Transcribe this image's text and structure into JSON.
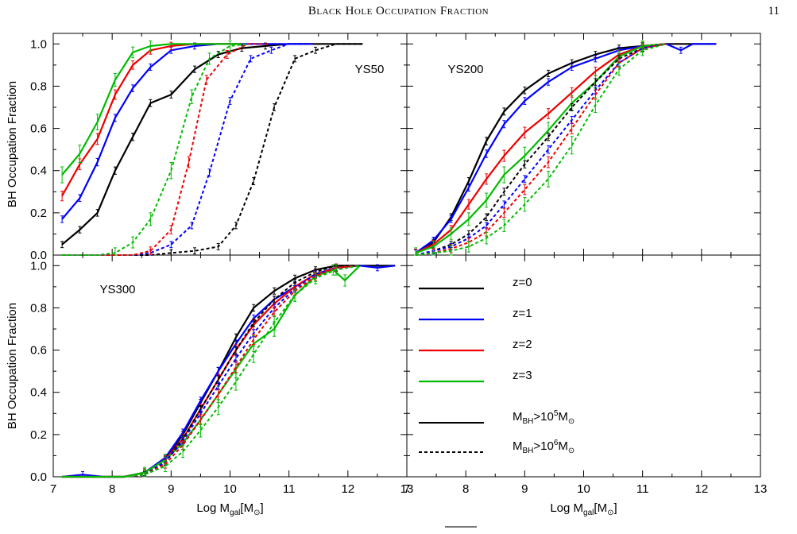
{
  "header": {
    "running_title": "Black Hole Occupation Fraction",
    "page_number": "11"
  },
  "colors": {
    "z0": "#000000",
    "z1": "#0000ff",
    "z2": "#ee0000",
    "z3": "#00bb00"
  },
  "chart_data": {
    "type": "line",
    "ylabel": "BH Occupation Fraction",
    "xlabel": "Log M_gal[M_⊙]",
    "xlim": [
      7,
      13
    ],
    "ylim": [
      0,
      1.05
    ],
    "x_ticks": [
      "7",
      "8",
      "9",
      "10",
      "11",
      "12",
      "13"
    ],
    "y_ticks": [
      "0.0",
      "0.2",
      "0.4",
      "0.6",
      "0.8",
      "1.0"
    ],
    "legend": {
      "redshifts": [
        {
          "label": "z=0",
          "color": "#000000"
        },
        {
          "label": "z=1",
          "color": "#0000ff"
        },
        {
          "label": "z=2",
          "color": "#ee0000"
        },
        {
          "label": "z=3",
          "color": "#00bb00"
        }
      ],
      "styles": [
        {
          "label_main": "M",
          "label_sub": "BH",
          "label_rest": ">10",
          "label_sup": "5",
          "label_unit": "M",
          "label_unit_sub": "⊙",
          "dash": false
        },
        {
          "label_main": "M",
          "label_sub": "BH",
          "label_rest": ">10",
          "label_sup": "6",
          "label_unit": "M",
          "label_unit_sub": "⊙",
          "dash": true
        }
      ]
    },
    "panels": [
      {
        "label": "YS50",
        "series": [
          {
            "z": 0,
            "cut": "1e5",
            "x": [
              7.15,
              7.45,
              7.75,
              8.05,
              8.35,
              8.65,
              9.0,
              9.4,
              9.8,
              10.2,
              10.6,
              11.0,
              11.4,
              11.8,
              12.25
            ],
            "y": [
              0.05,
              0.12,
              0.2,
              0.4,
              0.56,
              0.72,
              0.76,
              0.88,
              0.95,
              0.98,
              0.99,
              1.0,
              1.0,
              1.0,
              1.0
            ]
          },
          {
            "z": 1,
            "cut": "1e5",
            "x": [
              7.15,
              7.45,
              7.75,
              8.05,
              8.35,
              8.65,
              9.0,
              9.4,
              9.8,
              10.2,
              10.6,
              11.0,
              11.4
            ],
            "y": [
              0.17,
              0.27,
              0.44,
              0.65,
              0.79,
              0.89,
              0.97,
              0.99,
              1.0,
              1.0,
              1.0,
              1.0,
              1.0
            ]
          },
          {
            "z": 2,
            "cut": "1e5",
            "x": [
              7.15,
              7.45,
              7.75,
              8.05,
              8.35,
              8.65,
              9.0,
              9.4,
              9.8,
              10.2
            ],
            "y": [
              0.28,
              0.43,
              0.55,
              0.76,
              0.9,
              0.97,
              0.99,
              1.0,
              1.0,
              1.0
            ]
          },
          {
            "z": 3,
            "cut": "1e5",
            "x": [
              7.15,
              7.45,
              7.75,
              8.05,
              8.35,
              8.65,
              9.0,
              9.4,
              9.8,
              10.2
            ],
            "y": [
              0.38,
              0.48,
              0.63,
              0.83,
              0.96,
              0.99,
              1.0,
              1.0,
              1.0,
              1.0
            ]
          },
          {
            "z": 0,
            "cut": "1e6",
            "x": [
              7.15,
              7.45,
              7.75,
              8.05,
              8.35,
              8.65,
              9.0,
              9.4,
              9.8,
              10.1,
              10.4,
              10.75,
              11.1,
              11.45,
              11.8,
              12.25
            ],
            "y": [
              0.0,
              0.0,
              0.0,
              0.0,
              0.0,
              0.0,
              0.01,
              0.02,
              0.04,
              0.14,
              0.35,
              0.7,
              0.93,
              0.97,
              1.0,
              1.0
            ]
          },
          {
            "z": 1,
            "cut": "1e6",
            "x": [
              7.15,
              7.45,
              7.75,
              8.05,
              8.35,
              8.65,
              9.0,
              9.35,
              9.65,
              10.0,
              10.35,
              10.7,
              11.0,
              11.3
            ],
            "y": [
              0.0,
              0.0,
              0.0,
              0.0,
              0.0,
              0.01,
              0.05,
              0.14,
              0.39,
              0.73,
              0.93,
              0.97,
              1.0,
              1.0
            ]
          },
          {
            "z": 2,
            "cut": "1e6",
            "x": [
              7.15,
              7.45,
              7.75,
              8.05,
              8.35,
              8.65,
              9.0,
              9.3,
              9.6,
              9.95,
              10.3,
              10.65
            ],
            "y": [
              0.0,
              0.0,
              0.0,
              0.0,
              0.0,
              0.02,
              0.12,
              0.44,
              0.83,
              0.95,
              1.0,
              1.0
            ]
          },
          {
            "z": 3,
            "cut": "1e6",
            "x": [
              7.15,
              7.45,
              7.75,
              8.05,
              8.35,
              8.65,
              9.0,
              9.35,
              9.65,
              10.0,
              10.3
            ],
            "y": [
              0.0,
              0.0,
              0.0,
              0.01,
              0.06,
              0.17,
              0.4,
              0.75,
              0.93,
              0.99,
              1.0
            ]
          }
        ]
      },
      {
        "label": "YS200",
        "series": [
          {
            "z": 0,
            "cut": "1e5",
            "x": [
              7.15,
              7.45,
              7.75,
              8.05,
              8.35,
              8.65,
              9.0,
              9.4,
              9.8,
              10.2,
              10.6,
              11.0,
              11.4,
              11.8,
              12.25
            ],
            "y": [
              0.01,
              0.06,
              0.18,
              0.35,
              0.54,
              0.68,
              0.78,
              0.86,
              0.91,
              0.95,
              0.98,
              0.99,
              1.0,
              1.0,
              1.0
            ]
          },
          {
            "z": 1,
            "cut": "1e5",
            "x": [
              7.15,
              7.45,
              7.75,
              8.05,
              8.35,
              8.65,
              9.0,
              9.4,
              9.8,
              10.2,
              10.6,
              11.0,
              11.4,
              11.65,
              11.85,
              12.25
            ],
            "y": [
              0.01,
              0.07,
              0.17,
              0.32,
              0.48,
              0.62,
              0.73,
              0.82,
              0.89,
              0.93,
              0.97,
              0.99,
              1.0,
              0.97,
              1.0,
              1.0
            ]
          },
          {
            "z": 2,
            "cut": "1e5",
            "x": [
              7.15,
              7.45,
              7.75,
              8.05,
              8.35,
              8.65,
              9.0,
              9.4,
              9.8,
              10.2,
              10.6,
              11.0,
              11.4
            ],
            "y": [
              0.01,
              0.05,
              0.12,
              0.24,
              0.36,
              0.47,
              0.58,
              0.67,
              0.77,
              0.87,
              0.95,
              0.99,
              1.0
            ]
          },
          {
            "z": 3,
            "cut": "1e5",
            "x": [
              7.15,
              7.45,
              7.75,
              8.05,
              8.35,
              8.65,
              9.0,
              9.4,
              9.8,
              10.2,
              10.6,
              11.0,
              11.4
            ],
            "y": [
              0.01,
              0.04,
              0.1,
              0.17,
              0.26,
              0.38,
              0.47,
              0.59,
              0.72,
              0.82,
              0.94,
              0.99,
              1.0
            ]
          },
          {
            "z": 0,
            "cut": "1e6",
            "x": [
              7.15,
              7.45,
              7.75,
              8.05,
              8.35,
              8.65,
              9.0,
              9.4,
              9.8,
              10.2,
              10.6,
              11.0,
              11.4
            ],
            "y": [
              0.0,
              0.02,
              0.05,
              0.1,
              0.18,
              0.3,
              0.43,
              0.56,
              0.7,
              0.82,
              0.93,
              0.98,
              1.0
            ]
          },
          {
            "z": 1,
            "cut": "1e6",
            "x": [
              7.15,
              7.45,
              7.75,
              8.05,
              8.35,
              8.65,
              9.0,
              9.4,
              9.8,
              10.2,
              10.6,
              11.0,
              11.4
            ],
            "y": [
              0.0,
              0.02,
              0.04,
              0.08,
              0.14,
              0.24,
              0.36,
              0.5,
              0.64,
              0.78,
              0.91,
              0.98,
              1.0
            ]
          },
          {
            "z": 2,
            "cut": "1e6",
            "x": [
              7.15,
              7.45,
              7.75,
              8.05,
              8.35,
              8.65,
              9.0,
              9.4,
              9.8,
              10.2,
              10.6,
              11.0,
              11.4
            ],
            "y": [
              0.0,
              0.01,
              0.03,
              0.06,
              0.11,
              0.2,
              0.31,
              0.44,
              0.6,
              0.76,
              0.91,
              0.98,
              1.0
            ]
          },
          {
            "z": 3,
            "cut": "1e6",
            "x": [
              7.15,
              7.45,
              7.75,
              8.05,
              8.35,
              8.65,
              9.0,
              9.4,
              9.8,
              10.2,
              10.6,
              11.0,
              11.4
            ],
            "y": [
              0.0,
              0.01,
              0.02,
              0.04,
              0.08,
              0.14,
              0.24,
              0.36,
              0.52,
              0.71,
              0.88,
              0.97,
              1.0
            ]
          }
        ]
      },
      {
        "label": "YS300",
        "series": [
          {
            "z": 0,
            "cut": "1e5",
            "x": [
              7.15,
              7.5,
              7.85,
              8.2,
              8.55,
              8.9,
              9.2,
              9.5,
              9.8,
              10.1,
              10.4,
              10.75,
              11.1,
              11.45,
              11.8,
              12.2,
              12.8
            ],
            "y": [
              0.0,
              0.0,
              0.0,
              0.0,
              0.02,
              0.08,
              0.2,
              0.35,
              0.5,
              0.66,
              0.8,
              0.88,
              0.94,
              0.98,
              1.0,
              1.0,
              1.0
            ]
          },
          {
            "z": 1,
            "cut": "1e5",
            "x": [
              7.15,
              7.5,
              7.85,
              8.2,
              8.55,
              8.9,
              9.2,
              9.5,
              9.8,
              10.1,
              10.4,
              10.75,
              11.1,
              11.45,
              11.8,
              12.2,
              12.5,
              12.8
            ],
            "y": [
              0.0,
              0.01,
              0.0,
              0.0,
              0.02,
              0.09,
              0.21,
              0.36,
              0.5,
              0.63,
              0.75,
              0.84,
              0.9,
              0.96,
              0.99,
              1.0,
              0.99,
              1.0
            ]
          },
          {
            "z": 2,
            "cut": "1e5",
            "x": [
              7.15,
              7.5,
              7.85,
              8.2,
              8.55,
              8.9,
              9.2,
              9.5,
              9.8,
              10.1,
              10.4,
              10.75,
              11.1,
              11.45,
              11.8,
              12.2
            ],
            "y": [
              0.0,
              0.0,
              0.0,
              0.0,
              0.02,
              0.08,
              0.18,
              0.32,
              0.46,
              0.6,
              0.72,
              0.82,
              0.9,
              0.96,
              0.99,
              1.0
            ]
          },
          {
            "z": 3,
            "cut": "1e5",
            "x": [
              7.15,
              7.5,
              7.85,
              8.2,
              8.55,
              8.9,
              9.2,
              9.5,
              9.8,
              10.1,
              10.4,
              10.75,
              11.1,
              11.45,
              11.75,
              11.95,
              12.2
            ],
            "y": [
              0.0,
              0.0,
              0.0,
              0.0,
              0.02,
              0.08,
              0.16,
              0.27,
              0.39,
              0.51,
              0.63,
              0.7,
              0.86,
              0.95,
              0.98,
              0.93,
              1.0
            ]
          },
          {
            "z": 0,
            "cut": "1e6",
            "x": [
              7.15,
              7.5,
              7.85,
              8.2,
              8.55,
              8.9,
              9.2,
              9.5,
              9.8,
              10.1,
              10.4,
              10.75,
              11.1,
              11.45,
              11.8,
              12.2
            ],
            "y": [
              0.0,
              0.0,
              0.0,
              0.0,
              0.01,
              0.07,
              0.18,
              0.32,
              0.46,
              0.6,
              0.73,
              0.84,
              0.92,
              0.97,
              1.0,
              1.0
            ]
          },
          {
            "z": 1,
            "cut": "1e6",
            "x": [
              7.15,
              7.5,
              7.85,
              8.2,
              8.55,
              8.9,
              9.2,
              9.5,
              9.8,
              10.1,
              10.4,
              10.75,
              11.1,
              11.45,
              11.8,
              12.2
            ],
            "y": [
              0.0,
              0.0,
              0.0,
              0.0,
              0.01,
              0.07,
              0.17,
              0.3,
              0.43,
              0.56,
              0.68,
              0.8,
              0.89,
              0.96,
              0.99,
              1.0
            ]
          },
          {
            "z": 2,
            "cut": "1e6",
            "x": [
              7.15,
              7.5,
              7.85,
              8.2,
              8.55,
              8.9,
              9.2,
              9.5,
              9.8,
              10.1,
              10.4,
              10.75,
              11.1,
              11.45,
              11.8,
              12.2
            ],
            "y": [
              0.0,
              0.0,
              0.0,
              0.0,
              0.01,
              0.06,
              0.15,
              0.27,
              0.39,
              0.52,
              0.65,
              0.78,
              0.88,
              0.95,
              0.99,
              1.0
            ]
          },
          {
            "z": 3,
            "cut": "1e6",
            "x": [
              7.15,
              7.5,
              7.85,
              8.2,
              8.55,
              8.9,
              9.2,
              9.5,
              9.8,
              10.1,
              10.4,
              10.75,
              11.1,
              11.45,
              11.8,
              12.2
            ],
            "y": [
              0.0,
              0.0,
              0.0,
              0.0,
              0.01,
              0.05,
              0.12,
              0.22,
              0.33,
              0.45,
              0.58,
              0.73,
              0.86,
              0.94,
              0.98,
              1.0
            ]
          }
        ]
      }
    ]
  }
}
